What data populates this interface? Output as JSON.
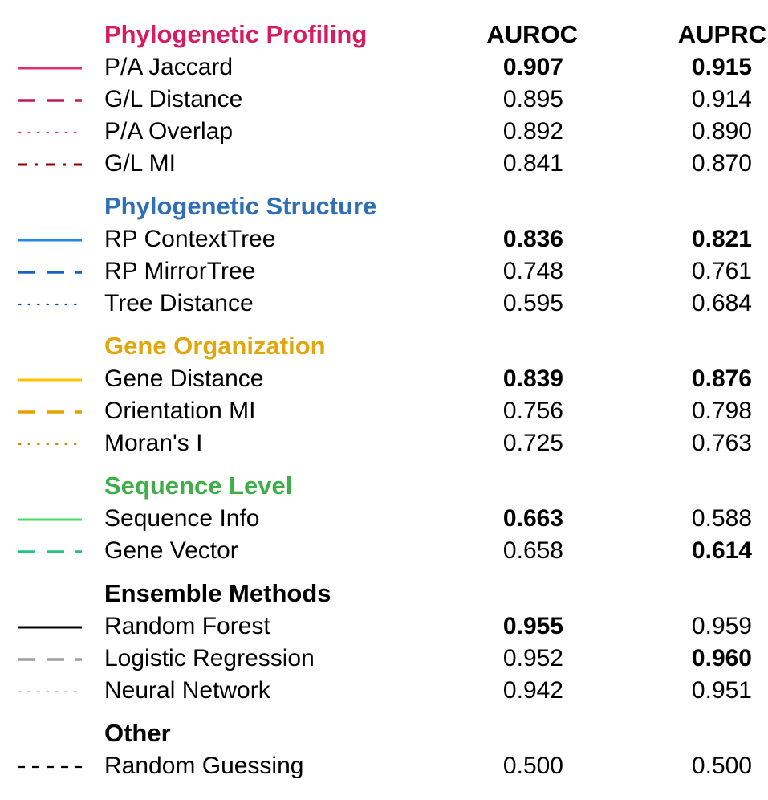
{
  "chart_data": {
    "type": "table",
    "columns": [
      "AUROC",
      "AUPRC"
    ],
    "groups": [
      {
        "name": "Phylogenetic Profiling",
        "color": "#d81b60",
        "rows": [
          {
            "label": "P/A Jaccard",
            "style": "solid",
            "color": "#e0306a",
            "auroc": "0.907",
            "auprc": "0.915",
            "auroc_bold": true,
            "auprc_bold": true
          },
          {
            "label": "G/L Distance",
            "style": "dashed",
            "color": "#c2185b",
            "auroc": "0.895",
            "auprc": "0.914",
            "auroc_bold": false,
            "auprc_bold": false
          },
          {
            "label": "P/A Overlap",
            "style": "dotted",
            "color": "#e0306a",
            "auroc": "0.892",
            "auprc": "0.890",
            "auroc_bold": false,
            "auprc_bold": false
          },
          {
            "label": "G/L MI",
            "style": "dashdot",
            "color": "#8b0000",
            "auroc": "0.841",
            "auprc": "0.870",
            "auroc_bold": false,
            "auprc_bold": false
          }
        ]
      },
      {
        "name": "Phylogenetic Structure",
        "color": "#2f6fb5",
        "rows": [
          {
            "label": "RP ContextTree",
            "style": "solid",
            "color": "#1e88e5",
            "auroc": "0.836",
            "auprc": "0.821",
            "auroc_bold": true,
            "auprc_bold": true
          },
          {
            "label": "RP MirrorTree",
            "style": "dashed",
            "color": "#1565c0",
            "auroc": "0.748",
            "auprc": "0.761",
            "auroc_bold": false,
            "auprc_bold": false
          },
          {
            "label": "Tree Distance",
            "style": "dotted",
            "color": "#0d47a1",
            "auroc": "0.595",
            "auprc": "0.684",
            "auroc_bold": false,
            "auprc_bold": false
          }
        ]
      },
      {
        "name": "Gene Organization",
        "color": "#e0a60b",
        "rows": [
          {
            "label": "Gene Distance",
            "style": "solid",
            "color": "#ffc107",
            "auroc": "0.839",
            "auprc": "0.876",
            "auroc_bold": true,
            "auprc_bold": true
          },
          {
            "label": "Orientation MI",
            "style": "dashed",
            "color": "#e6a200",
            "auroc": "0.756",
            "auprc": "0.798",
            "auroc_bold": false,
            "auprc_bold": false
          },
          {
            "label": "Moran's I",
            "style": "dotted",
            "color": "#d08a00",
            "auroc": "0.725",
            "auprc": "0.763",
            "auroc_bold": false,
            "auprc_bold": false
          }
        ]
      },
      {
        "name": "Sequence Level",
        "color": "#3fae49",
        "rows": [
          {
            "label": "Sequence Info",
            "style": "solid",
            "color": "#4cd964",
            "auroc": "0.663",
            "auprc": "0.588",
            "auroc_bold": true,
            "auprc_bold": false
          },
          {
            "label": "Gene Vector",
            "style": "dashed",
            "color": "#26c281",
            "auroc": "0.658",
            "auprc": "0.614",
            "auroc_bold": false,
            "auprc_bold": true
          }
        ]
      },
      {
        "name": "Ensemble Methods",
        "color": "#000000",
        "rows": [
          {
            "label": "Random Forest",
            "style": "solid",
            "color": "#000000",
            "auroc": "0.955",
            "auprc": "0.959",
            "auroc_bold": true,
            "auprc_bold": false
          },
          {
            "label": "Logistic Regression",
            "style": "dashed",
            "color": "#9e9e9e",
            "auroc": "0.952",
            "auprc": "0.960",
            "auroc_bold": false,
            "auprc_bold": true
          },
          {
            "label": "Neural Network",
            "style": "dotted",
            "color": "#c8c8c8",
            "auroc": "0.942",
            "auprc": "0.951",
            "auroc_bold": false,
            "auprc_bold": false
          }
        ]
      },
      {
        "name": "Other",
        "color": "#000000",
        "rows": [
          {
            "label": "Random Guessing",
            "style": "finedash",
            "color": "#000000",
            "auroc": "0.500",
            "auprc": "0.500",
            "auroc_bold": false,
            "auprc_bold": false
          }
        ]
      }
    ]
  }
}
